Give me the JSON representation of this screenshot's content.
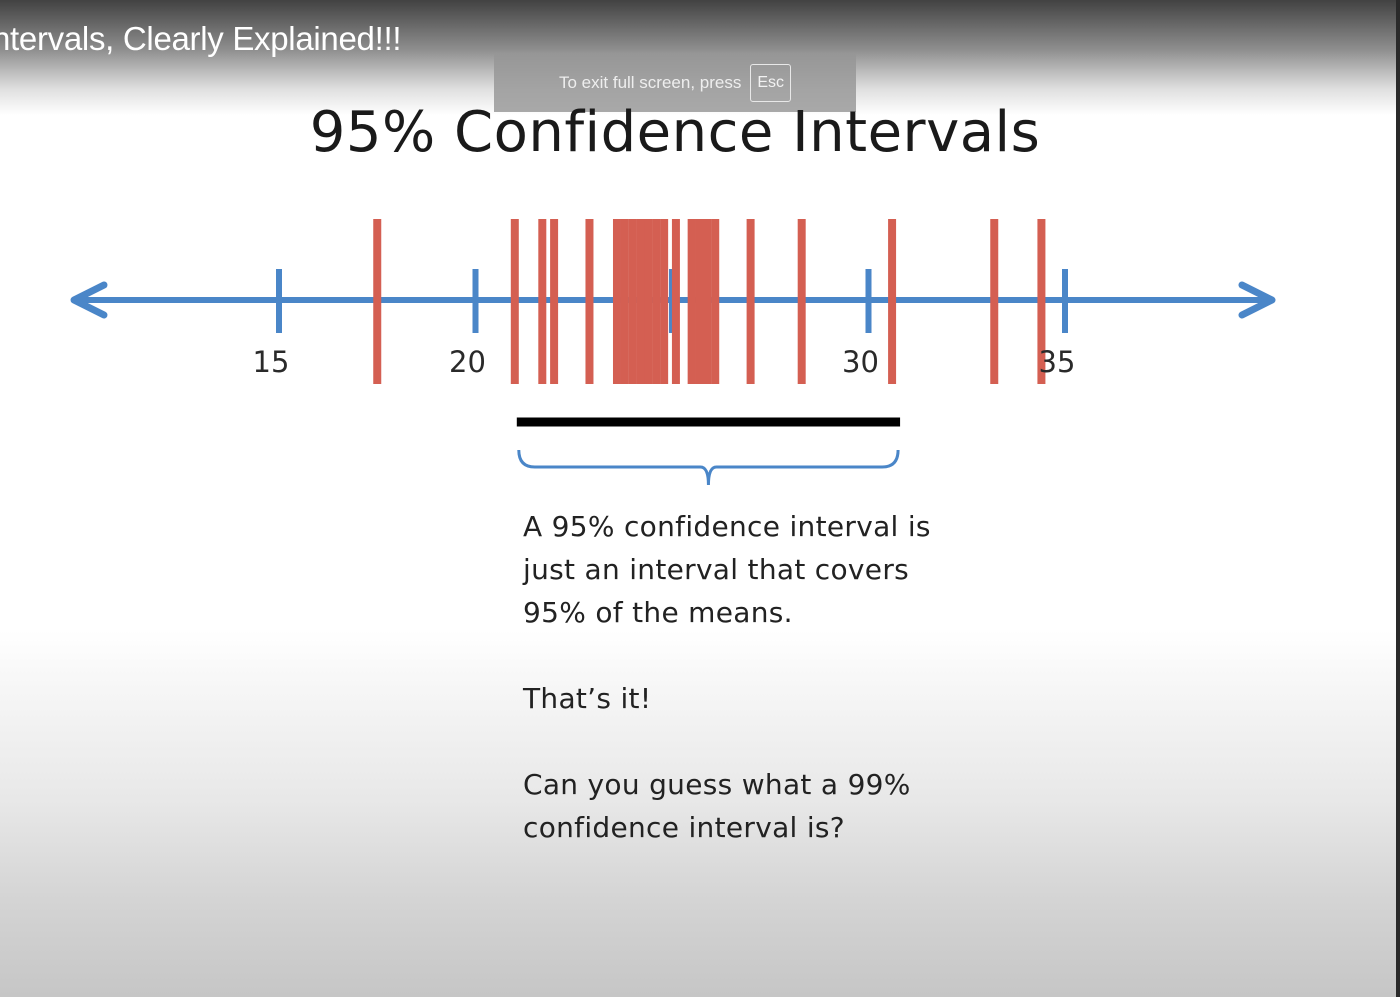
{
  "video": {
    "title": "ntervals, Clearly Explained!!!"
  },
  "fullscreen_notice": {
    "text": "To exit full screen, press",
    "key": "Esc"
  },
  "slide": {
    "title": "95% Confidence Intervals",
    "number_line": {
      "ticks": [
        15,
        20,
        25,
        30,
        35
      ],
      "tick_labels": [
        "15",
        "20",
        "",
        "30",
        "35"
      ],
      "axis_color": "#4a86c8",
      "mean_marker_color": "#d45f52",
      "sample_means": [
        17.5,
        21.0,
        21.7,
        22.0,
        22.9,
        23.6,
        23.8,
        24.0,
        24.2,
        24.4,
        24.6,
        24.8,
        25.1,
        25.5,
        25.7,
        25.9,
        26.1,
        27.0,
        28.3,
        30.6,
        33.2,
        34.4
      ],
      "interval": {
        "from": 21.0,
        "to": 30.6
      },
      "interval_bar_color": "#000000"
    },
    "text_lines": [
      "A 95% confidence interval is",
      "just an interval that covers",
      "95% of the means."
    ],
    "exclamation": "That’s it!",
    "question_lines": [
      "Can you guess what a 99%",
      "confidence interval is?"
    ]
  }
}
